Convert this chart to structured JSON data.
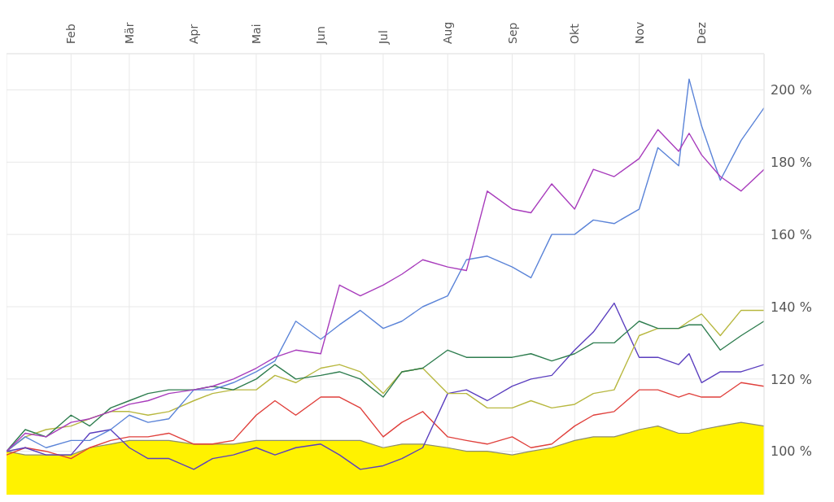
{
  "chart_data": {
    "type": "line",
    "x": [
      "--01-01",
      "--01-10",
      "--01-20",
      "--02-01",
      "--02-10",
      "--02-20",
      "--03-01",
      "--03-10",
      "--03-20",
      "--04-01",
      "--04-10",
      "--04-20",
      "--05-01",
      "--05-10",
      "--05-20",
      "--06-01",
      "--06-10",
      "--06-20",
      "--07-01",
      "--07-10",
      "--07-20",
      "--08-01",
      "--08-10",
      "--08-20",
      "--09-01",
      "--09-10",
      "--09-20",
      "--10-01",
      "--10-10",
      "--10-20",
      "--11-01",
      "--11-10",
      "--11-20",
      "--11-25",
      "--12-01",
      "--12-10",
      "--12-20",
      "--12-31"
    ],
    "series": [
      {
        "type": "area",
        "color": "#fff200",
        "values": [
          100,
          99,
          99,
          99,
          101,
          102,
          103,
          103,
          103,
          102,
          102,
          102,
          103,
          103,
          103,
          103,
          103,
          103,
          101,
          102,
          102,
          101,
          100,
          100,
          99,
          100,
          101,
          103,
          104,
          104,
          106,
          107,
          105,
          105,
          106,
          107,
          108,
          107
        ]
      },
      {
        "color": "#e0403c",
        "values": [
          99,
          101,
          100,
          98,
          101,
          103,
          104,
          104,
          105,
          102,
          102,
          103,
          110,
          114,
          110,
          115,
          115,
          112,
          104,
          108,
          111,
          104,
          103,
          102,
          104,
          101,
          102,
          107,
          110,
          111,
          117,
          117,
          115,
          116,
          115,
          115,
          119,
          118
        ]
      },
      {
        "color": "#5b3fbf",
        "values": [
          100,
          101,
          99,
          99,
          105,
          106,
          101,
          98,
          98,
          95,
          98,
          99,
          101,
          99,
          101,
          102,
          99,
          95,
          96,
          98,
          101,
          116,
          117,
          114,
          118,
          120,
          121,
          128,
          133,
          141,
          126,
          126,
          124,
          127,
          119,
          122,
          122,
          124
        ]
      },
      {
        "color": "#b8b840",
        "values": [
          100,
          104,
          106,
          107,
          109,
          111,
          111,
          110,
          111,
          114,
          116,
          117,
          117,
          121,
          119,
          123,
          124,
          122,
          116,
          122,
          123,
          116,
          116,
          112,
          112,
          114,
          112,
          113,
          116,
          117,
          132,
          134,
          134,
          136,
          138,
          132,
          139,
          139
        ]
      },
      {
        "color": "#2e7d4f",
        "values": [
          100,
          106,
          104,
          110,
          107,
          112,
          114,
          116,
          117,
          117,
          118,
          117,
          120,
          124,
          120,
          121,
          122,
          120,
          115,
          122,
          123,
          128,
          126,
          126,
          126,
          127,
          125,
          127,
          130,
          130,
          136,
          134,
          134,
          135,
          135,
          128,
          132,
          136
        ]
      },
      {
        "color": "#5b84d8",
        "values": [
          100,
          104,
          101,
          103,
          103,
          106,
          110,
          108,
          109,
          117,
          117,
          119,
          122,
          125,
          136,
          131,
          135,
          139,
          134,
          136,
          140,
          143,
          153,
          154,
          151,
          148,
          160,
          160,
          164,
          163,
          167,
          184,
          179,
          203,
          190,
          175,
          186,
          195
        ]
      },
      {
        "color": "#a83cbc",
        "values": [
          100,
          105,
          104,
          108,
          109,
          111,
          113,
          114,
          116,
          117,
          118,
          120,
          123,
          126,
          128,
          127,
          146,
          143,
          146,
          149,
          153,
          151,
          150,
          172,
          167,
          166,
          174,
          167,
          178,
          176,
          181,
          189,
          183,
          188,
          182,
          176,
          172,
          178
        ]
      }
    ],
    "xlim": [
      "--01-01",
      "--12-31"
    ],
    "xticks": [
      {
        "value": "--02-01",
        "label": "Feb"
      },
      {
        "value": "--03-01",
        "label": "Mär"
      },
      {
        "value": "--04-01",
        "label": "Apr"
      },
      {
        "value": "--05-01",
        "label": "Mai"
      },
      {
        "value": "--06-01",
        "label": "Jun"
      },
      {
        "value": "--07-01",
        "label": "Jul"
      },
      {
        "value": "--08-01",
        "label": "Aug"
      },
      {
        "value": "--09-01",
        "label": "Sep"
      },
      {
        "value": "--10-01",
        "label": "Okt"
      },
      {
        "value": "--11-01",
        "label": "Nov"
      },
      {
        "value": "--12-01",
        "label": "Dez"
      }
    ],
    "ylim": [
      88,
      210
    ],
    "yticks": [
      {
        "value": 100,
        "label": "100 %"
      },
      {
        "value": 120,
        "label": "120 %"
      },
      {
        "value": 140,
        "label": "140 %"
      },
      {
        "value": 160,
        "label": "160 %"
      },
      {
        "value": 180,
        "label": "180 %"
      },
      {
        "value": 200,
        "label": "200 %"
      }
    ],
    "grid": true,
    "legend": false,
    "marker": "none",
    "line_style": "solid"
  }
}
